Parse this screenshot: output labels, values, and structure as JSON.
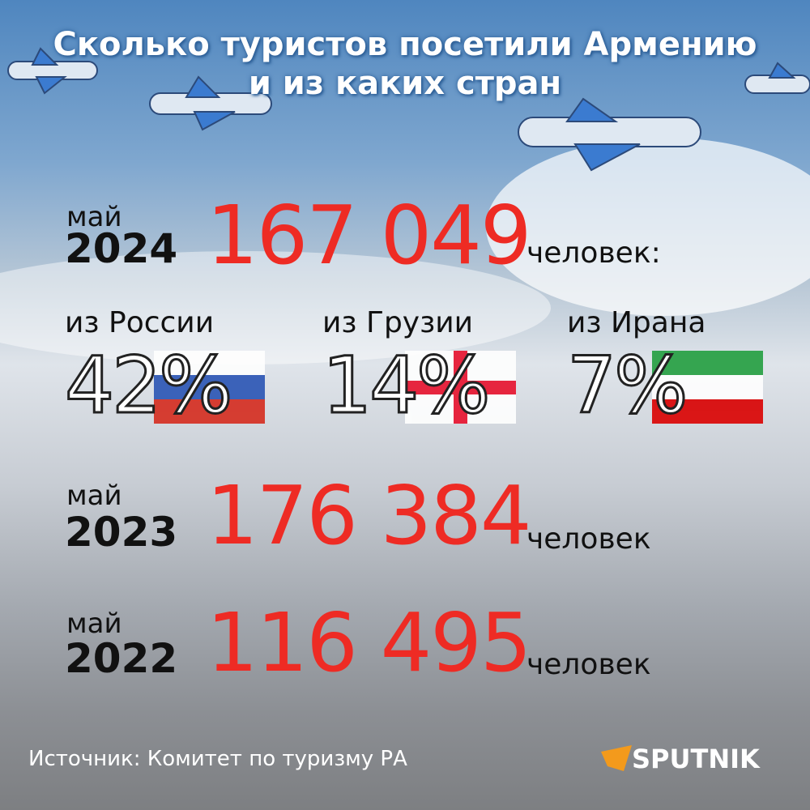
{
  "header": {
    "title_lines": [
      "Сколько туристов посетили Армению",
      "и из каких стран"
    ]
  },
  "periods": [
    {
      "month": "май",
      "year": "2024",
      "count": "167 049",
      "unit": "человек:"
    },
    {
      "month": "май",
      "year": "2023",
      "count": "176 384",
      "unit": "человек"
    },
    {
      "month": "май",
      "year": "2022",
      "count": "116 495",
      "unit": "человек"
    }
  ],
  "shares": [
    {
      "label": "из России",
      "value": "42%"
    },
    {
      "label": "из Грузии",
      "value": "14%"
    },
    {
      "label": "из Ирана",
      "value": "7%"
    }
  ],
  "footer": {
    "source": "Источник: Комитет по туризму РА",
    "logo": "SPUTNIK"
  }
}
